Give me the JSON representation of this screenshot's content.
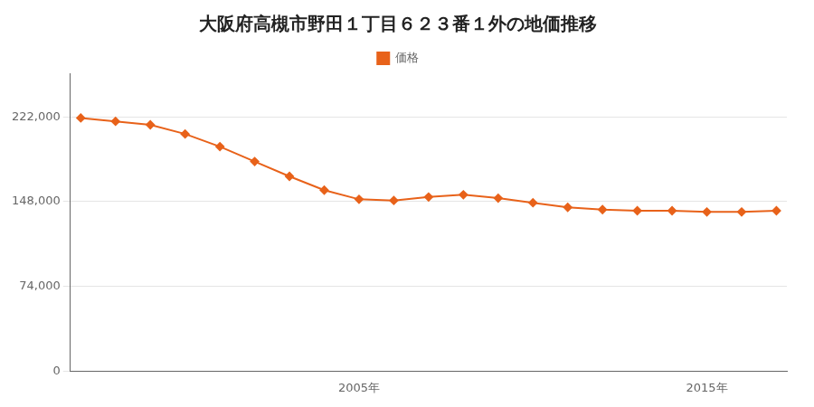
{
  "chart_data": {
    "type": "line",
    "title": "大阪府高槻市野田１丁目６２３番１外の地価推移",
    "legend": "top",
    "x": [
      1997,
      1998,
      1999,
      2000,
      2001,
      2002,
      2003,
      2004,
      2005,
      2006,
      2007,
      2008,
      2009,
      2010,
      2011,
      2012,
      2013,
      2014,
      2015,
      2016,
      2017
    ],
    "series": [
      {
        "name": "価格",
        "color": "#E8621A",
        "marker": "diamond",
        "values": [
          221000,
          218000,
          215000,
          207000,
          196000,
          183000,
          170000,
          158000,
          150000,
          149000,
          152000,
          154000,
          151000,
          147000,
          143000,
          141000,
          140000,
          140000,
          139000,
          139000,
          140000
        ]
      }
    ],
    "xlim": [
      1996.7,
      2017.3
    ],
    "xticks": [
      {
        "value": 2005,
        "label": "2005年"
      },
      {
        "value": 2015,
        "label": "2015年"
      }
    ],
    "ylim": [
      0,
      260000
    ],
    "yticks": [
      0,
      {
        "value": 74000,
        "label": "74,000"
      },
      {
        "value": 148000,
        "label": "148,000"
      },
      {
        "value": 222000,
        "label": "222,000"
      }
    ],
    "grid": "y"
  }
}
